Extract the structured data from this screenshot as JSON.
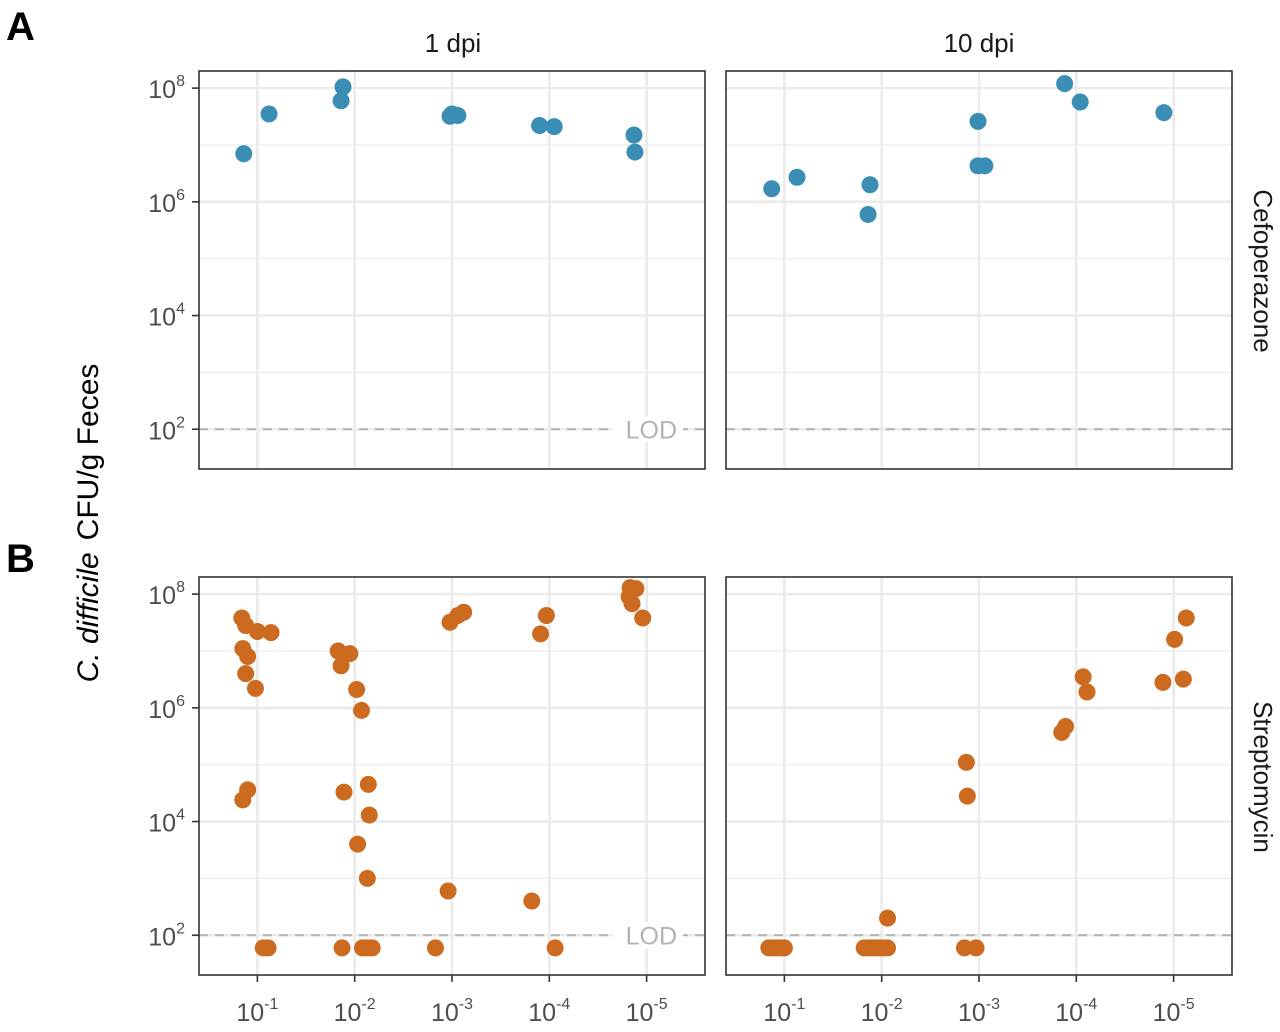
{
  "panel_labels": [
    "A",
    "B"
  ],
  "column_labels": [
    "1 dpi",
    "10 dpi"
  ],
  "row_labels": [
    "Cefoperazone",
    "Streptomycin"
  ],
  "y_axis_title": {
    "italic": "C. difficile",
    "rest": "CFU/g Feces"
  },
  "lod_label": "LOD",
  "colors": {
    "cefoperazone": "#3a8db5",
    "streptomycin": "#cc6a1f",
    "lod_line": "#b3b3b3",
    "grid": "#ebebeb"
  },
  "chart_data": {
    "type": "scatter",
    "x_categories": [
      "1",
      "2",
      "3",
      "4",
      "5"
    ],
    "x_tick_labels": [
      {
        "base": "10",
        "exp": "-1"
      },
      {
        "base": "10",
        "exp": "-2"
      },
      {
        "base": "10",
        "exp": "-3"
      },
      {
        "base": "10",
        "exp": "-4"
      },
      {
        "base": "10",
        "exp": "-5"
      }
    ],
    "y_scale": "log10",
    "y_ticks": [
      {
        "base": "10",
        "exp": "2",
        "value": 100
      },
      {
        "base": "10",
        "exp": "4",
        "value": 10000
      },
      {
        "base": "10",
        "exp": "6",
        "value": 1000000
      },
      {
        "base": "10",
        "exp": "8",
        "value": 100000000
      }
    ],
    "y_range": [
      20,
      200000000
    ],
    "lod": 100,
    "grid": true,
    "panels": [
      {
        "row": "Cefoperazone",
        "col": "1 dpi",
        "color": "cefoperazone",
        "show_lod_label": true,
        "points": [
          {
            "x": 0.86,
            "y": 7000000
          },
          {
            "x": 1.12,
            "y": 35000000
          },
          {
            "x": 1.86,
            "y": 60000000
          },
          {
            "x": 1.88,
            "y": 105000000
          },
          {
            "x": 2.98,
            "y": 32000000
          },
          {
            "x": 3.0,
            "y": 35000000
          },
          {
            "x": 3.06,
            "y": 33000000
          },
          {
            "x": 3.9,
            "y": 22000000
          },
          {
            "x": 4.05,
            "y": 21000000
          },
          {
            "x": 4.87,
            "y": 15000000
          },
          {
            "x": 4.88,
            "y": 7500000
          }
        ]
      },
      {
        "row": "Cefoperazone",
        "col": "10 dpi",
        "color": "cefoperazone",
        "show_lod_label": false,
        "points": [
          {
            "x": 0.87,
            "y": 1700000
          },
          {
            "x": 1.13,
            "y": 2700000
          },
          {
            "x": 1.86,
            "y": 600000
          },
          {
            "x": 1.88,
            "y": 2000000
          },
          {
            "x": 2.99,
            "y": 26000000
          },
          {
            "x": 2.99,
            "y": 4300000
          },
          {
            "x": 3.06,
            "y": 4300000
          },
          {
            "x": 3.88,
            "y": 120000000
          },
          {
            "x": 4.04,
            "y": 57000000
          },
          {
            "x": 4.9,
            "y": 37000000
          }
        ]
      },
      {
        "row": "Streptomycin",
        "col": "1 dpi",
        "color": "streptomycin",
        "show_lod_label": true,
        "points": [
          {
            "x": 0.84,
            "y": 38000000
          },
          {
            "x": 0.88,
            "y": 28000000
          },
          {
            "x": 1.0,
            "y": 22000000
          },
          {
            "x": 1.14,
            "y": 21000000
          },
          {
            "x": 0.85,
            "y": 11000000
          },
          {
            "x": 0.9,
            "y": 8000000
          },
          {
            "x": 0.88,
            "y": 4000000
          },
          {
            "x": 0.98,
            "y": 2200000
          },
          {
            "x": 0.85,
            "y": 24000
          },
          {
            "x": 0.9,
            "y": 36000
          },
          {
            "x": 1.06,
            "y": 60
          },
          {
            "x": 1.11,
            "y": 60
          },
          {
            "x": 1.83,
            "y": 10000000
          },
          {
            "x": 1.95,
            "y": 9000000
          },
          {
            "x": 1.86,
            "y": 5500000
          },
          {
            "x": 2.02,
            "y": 2100000
          },
          {
            "x": 2.07,
            "y": 900000
          },
          {
            "x": 1.89,
            "y": 33000
          },
          {
            "x": 2.14,
            "y": 45000
          },
          {
            "x": 2.15,
            "y": 13000
          },
          {
            "x": 2.03,
            "y": 4000
          },
          {
            "x": 2.13,
            "y": 1000
          },
          {
            "x": 1.87,
            "y": 60
          },
          {
            "x": 2.08,
            "y": 60
          },
          {
            "x": 2.13,
            "y": 60
          },
          {
            "x": 2.18,
            "y": 60
          },
          {
            "x": 2.98,
            "y": 32000000
          },
          {
            "x": 3.06,
            "y": 42000000
          },
          {
            "x": 3.12,
            "y": 48000000
          },
          {
            "x": 2.96,
            "y": 600
          },
          {
            "x": 2.83,
            "y": 60
          },
          {
            "x": 3.97,
            "y": 42000000
          },
          {
            "x": 3.91,
            "y": 20000000
          },
          {
            "x": 3.82,
            "y": 400
          },
          {
            "x": 4.06,
            "y": 60
          },
          {
            "x": 4.83,
            "y": 130000000
          },
          {
            "x": 4.89,
            "y": 125000000
          },
          {
            "x": 4.82,
            "y": 90000000
          },
          {
            "x": 4.85,
            "y": 68000000
          },
          {
            "x": 4.96,
            "y": 38000000
          }
        ]
      },
      {
        "row": "Streptomycin",
        "col": "10 dpi",
        "color": "streptomycin",
        "show_lod_label": false,
        "points": [
          {
            "x": 0.84,
            "y": 60
          },
          {
            "x": 0.88,
            "y": 60
          },
          {
            "x": 0.92,
            "y": 60
          },
          {
            "x": 0.96,
            "y": 60
          },
          {
            "x": 1.0,
            "y": 60
          },
          {
            "x": 1.82,
            "y": 60
          },
          {
            "x": 1.86,
            "y": 60
          },
          {
            "x": 1.9,
            "y": 60
          },
          {
            "x": 1.94,
            "y": 60
          },
          {
            "x": 1.98,
            "y": 60
          },
          {
            "x": 2.02,
            "y": 60
          },
          {
            "x": 2.06,
            "y": 60
          },
          {
            "x": 2.06,
            "y": 200
          },
          {
            "x": 2.85,
            "y": 60
          },
          {
            "x": 2.97,
            "y": 60
          },
          {
            "x": 2.87,
            "y": 110000
          },
          {
            "x": 2.88,
            "y": 28000
          },
          {
            "x": 3.85,
            "y": 370000
          },
          {
            "x": 3.89,
            "y": 470000
          },
          {
            "x": 4.07,
            "y": 3500000
          },
          {
            "x": 4.11,
            "y": 1900000
          },
          {
            "x": 4.89,
            "y": 2800000
          },
          {
            "x": 5.01,
            "y": 16000000
          },
          {
            "x": 5.1,
            "y": 3200000
          },
          {
            "x": 5.13,
            "y": 38000000
          }
        ]
      }
    ]
  }
}
